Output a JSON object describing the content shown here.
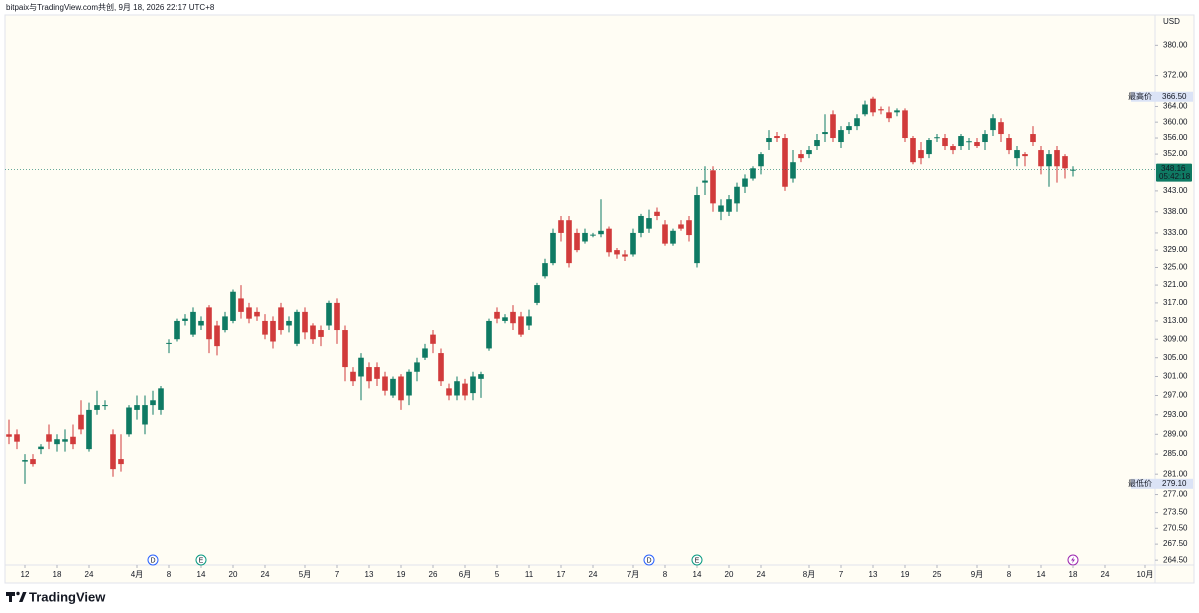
{
  "header": {
    "text": "bitpaix与TradingView.com共创, 9月 18, 2026 22:17 UTC+8"
  },
  "footer": {
    "brand": "TradingView"
  },
  "chart_data": {
    "type": "candlestick",
    "currency": "USD",
    "up_color": "#0f7a63",
    "down_color": "#d13b3b",
    "log_scale": true,
    "ylim": [
      263.6,
      388.2
    ],
    "yticks": [
      {
        "value": 380,
        "label": "380.00"
      },
      {
        "value": 372,
        "label": "372.00"
      },
      {
        "value": 364,
        "label": "364.00"
      },
      {
        "value": 360,
        "label": "360.00"
      },
      {
        "value": 356,
        "label": "356.00"
      },
      {
        "value": 352,
        "label": "352.00"
      },
      {
        "value": 343,
        "label": "343.00"
      },
      {
        "value": 338,
        "label": "338.00"
      },
      {
        "value": 333,
        "label": "333.00"
      },
      {
        "value": 329,
        "label": "329.00"
      },
      {
        "value": 325,
        "label": "325.00"
      },
      {
        "value": 321,
        "label": "321.00"
      },
      {
        "value": 317,
        "label": "317.00"
      },
      {
        "value": 313,
        "label": "313.00"
      },
      {
        "value": 309,
        "label": "309.00"
      },
      {
        "value": 305,
        "label": "305.00"
      },
      {
        "value": 301,
        "label": "301.00"
      },
      {
        "value": 297,
        "label": "297.00"
      },
      {
        "value": 293,
        "label": "293.00"
      },
      {
        "value": 289,
        "label": "289.00"
      },
      {
        "value": 285,
        "label": "285.00"
      },
      {
        "value": 281,
        "label": "281.00"
      },
      {
        "value": 277,
        "label": "277.00"
      },
      {
        "value": 273.5,
        "label": "273.50"
      },
      {
        "value": 270.5,
        "label": "270.50"
      },
      {
        "value": 267.5,
        "label": "267.50"
      },
      {
        "value": 264.5,
        "label": "264.50"
      }
    ],
    "xlim": [
      -0.5,
      143.25
    ],
    "xticks": [
      {
        "value": 2,
        "label": "12"
      },
      {
        "value": 6,
        "label": "18"
      },
      {
        "value": 10,
        "label": "24"
      },
      {
        "value": 16,
        "label": "4月"
      },
      {
        "value": 20,
        "label": "8"
      },
      {
        "value": 24,
        "label": "14"
      },
      {
        "value": 28,
        "label": "20"
      },
      {
        "value": 32,
        "label": "24"
      },
      {
        "value": 37,
        "label": "5月"
      },
      {
        "value": 41,
        "label": "7"
      },
      {
        "value": 45,
        "label": "13"
      },
      {
        "value": 49,
        "label": "19"
      },
      {
        "value": 53,
        "label": "26"
      },
      {
        "value": 57,
        "label": "6月"
      },
      {
        "value": 61,
        "label": "5"
      },
      {
        "value": 65,
        "label": "11"
      },
      {
        "value": 69,
        "label": "17"
      },
      {
        "value": 73,
        "label": "24"
      },
      {
        "value": 78,
        "label": "7月"
      },
      {
        "value": 82,
        "label": "8"
      },
      {
        "value": 86,
        "label": "14"
      },
      {
        "value": 90,
        "label": "20"
      },
      {
        "value": 94,
        "label": "24"
      },
      {
        "value": 100,
        "label": "8月"
      },
      {
        "value": 104,
        "label": "7"
      },
      {
        "value": 108,
        "label": "13"
      },
      {
        "value": 112,
        "label": "19"
      },
      {
        "value": 116,
        "label": "25"
      },
      {
        "value": 121,
        "label": "9月"
      },
      {
        "value": 125,
        "label": "8"
      },
      {
        "value": 129,
        "label": "14"
      },
      {
        "value": 133,
        "label": "18"
      },
      {
        "value": 137,
        "label": "24"
      },
      {
        "value": 142,
        "label": "10月"
      }
    ],
    "open": [
      289,
      289,
      283.5,
      284,
      286,
      289,
      287,
      287.5,
      288.5,
      293,
      286,
      294,
      294.8,
      289,
      284,
      289,
      294,
      291,
      295,
      294,
      308,
      309,
      313,
      310,
      312,
      316,
      312,
      311,
      313,
      318,
      316,
      315,
      313,
      313,
      316,
      312,
      308,
      315,
      312,
      311,
      312,
      317,
      311,
      302,
      301,
      303,
      303,
      301,
      297,
      301,
      297,
      302,
      305,
      310,
      306,
      298.5,
      297,
      299.5,
      297.5,
      300.5,
      307,
      315,
      313,
      315,
      314,
      312,
      317,
      323,
      326,
      336,
      336,
      333,
      331,
      332.5,
      332.7,
      334,
      329,
      328,
      328,
      333,
      334,
      338,
      335,
      330.5,
      335,
      336,
      326,
      345,
      348,
      338,
      338,
      340,
      344,
      346,
      349,
      355,
      356.5,
      356,
      346,
      352,
      352,
      354,
      357,
      362,
      355,
      358,
      359,
      362,
      366,
      363.3,
      362.5,
      362.5,
      363,
      356,
      353,
      352,
      356,
      356,
      354,
      354,
      355,
      355,
      355,
      358,
      360,
      356,
      351,
      352,
      357,
      353,
      349,
      353,
      351.5,
      348
    ],
    "high": [
      292,
      290,
      285,
      285,
      287,
      291,
      289,
      290,
      291,
      296,
      295.5,
      298,
      296,
      290,
      289,
      295,
      297,
      297,
      298,
      299,
      309,
      313.5,
      314.5,
      316,
      314,
      316.5,
      313,
      315,
      320,
      321,
      317,
      316,
      314.5,
      314,
      317,
      314,
      315.5,
      316,
      312.5,
      312,
      317.5,
      318,
      312,
      303,
      306,
      304,
      304,
      302,
      301,
      301.5,
      302.5,
      305,
      308,
      311,
      307,
      299.5,
      301,
      300.5,
      302,
      302,
      313.5,
      316,
      314.5,
      316.5,
      315,
      315.5,
      321.5,
      327,
      334,
      337,
      337,
      334,
      334,
      333,
      341,
      334.5,
      329.5,
      329,
      334,
      337.5,
      338.5,
      339,
      336,
      334,
      336,
      337,
      344,
      349,
      349,
      341,
      342,
      345,
      347,
      349,
      352.5,
      358,
      357.5,
      357,
      353,
      353,
      354,
      357,
      362,
      363,
      359,
      360,
      362,
      365.5,
      366.5,
      364,
      364,
      363.5,
      363.5,
      356.5,
      355,
      356,
      357,
      357,
      354.5,
      357,
      356,
      356,
      358,
      362,
      361,
      357,
      354,
      352.5,
      359,
      354,
      353,
      354,
      352,
      349
    ],
    "low": [
      287,
      286,
      279.1,
      282.5,
      285,
      286,
      285.5,
      285.5,
      286,
      289,
      285.5,
      293,
      294,
      280.5,
      281.5,
      288.5,
      292,
      289,
      293,
      293,
      306,
      308.5,
      312,
      309.5,
      311,
      306,
      305.5,
      310.5,
      312.5,
      313.5,
      312.5,
      313,
      309,
      307,
      310,
      310.5,
      307.5,
      309,
      308,
      307.5,
      311,
      308,
      300,
      299,
      296,
      298.5,
      299,
      297,
      296.5,
      294,
      295,
      300,
      304.5,
      306,
      299,
      296,
      296,
      296,
      296,
      296.5,
      306.5,
      312.5,
      312.5,
      311,
      309.5,
      311,
      316.5,
      322.5,
      325.5,
      331,
      325,
      328.5,
      330.5,
      332,
      332,
      327.5,
      327,
      326.5,
      327.5,
      332,
      333,
      336,
      330,
      330,
      333.5,
      331,
      325,
      342,
      338,
      336,
      337,
      338,
      342.5,
      345.5,
      347,
      353,
      355,
      343,
      345,
      350,
      351,
      353,
      355,
      355,
      353.5,
      357,
      358,
      361.5,
      361.5,
      362,
      360,
      361.5,
      355,
      349.5,
      349.5,
      351,
      355,
      353,
      352,
      353,
      353,
      353.5,
      353,
      356.5,
      355,
      352,
      349,
      349,
      354,
      347,
      344,
      345,
      346,
      346.5
    ],
    "close": [
      288.5,
      287.5,
      283.8,
      283,
      286.5,
      287.5,
      288,
      288,
      287,
      290,
      294,
      295,
      295,
      282,
      283,
      294.5,
      295,
      295,
      296,
      298.5,
      308.2,
      313,
      313.5,
      315,
      313,
      309,
      307.5,
      314,
      319.5,
      315,
      313.5,
      314,
      310,
      308.5,
      311,
      313,
      315,
      310.5,
      309,
      309.5,
      317,
      311,
      303,
      300,
      305,
      300,
      300.5,
      298,
      300.5,
      296,
      302,
      304,
      307,
      308,
      300,
      297,
      300,
      297,
      301,
      301.5,
      313,
      313.5,
      313.8,
      312.5,
      310,
      314,
      321,
      326,
      333,
      333,
      326,
      329,
      333,
      332.6,
      333.5,
      328.5,
      328,
      327.5,
      333,
      337,
      336.5,
      337,
      330.5,
      333.5,
      334,
      332.5,
      342,
      345.5,
      340,
      339.5,
      341,
      344,
      346,
      348.5,
      352,
      356,
      356,
      344,
      350,
      351,
      353,
      355.5,
      357.5,
      356,
      358,
      359,
      361,
      364.5,
      362.5,
      363,
      361,
      363,
      356,
      350,
      351,
      355.5,
      356.2,
      354,
      353,
      356.5,
      355.2,
      354,
      357,
      361,
      357,
      353,
      353,
      351.5,
      355,
      349,
      352,
      349,
      348.5,
      348.16
    ],
    "high_marker": {
      "label": "最高价",
      "value": 366.5,
      "value_label": "366.50"
    },
    "low_marker": {
      "label": "最低价",
      "value": 279.1,
      "value_label": "279.10"
    },
    "last_price": {
      "value": 348.16,
      "countdown": "05:42:18"
    },
    "events": [
      {
        "label": "D",
        "at": 18,
        "color": "#2962ff"
      },
      {
        "label": "E",
        "at": 24,
        "color": "#089981"
      },
      {
        "label": "D",
        "at": 80,
        "color": "#2962ff"
      },
      {
        "label": "E",
        "at": 86,
        "color": "#089981"
      }
    ]
  }
}
